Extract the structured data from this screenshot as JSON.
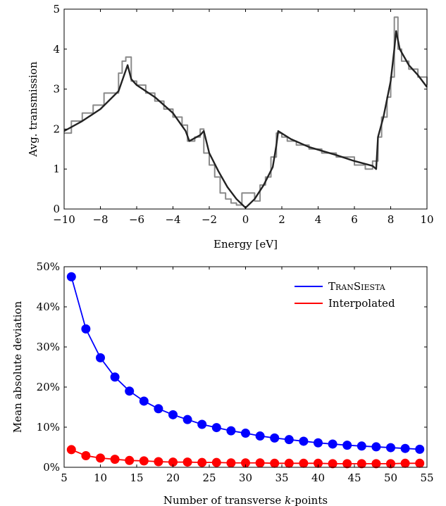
{
  "chart_data": [
    {
      "type": "line",
      "xlabel": "Energy [eV]",
      "ylabel": "Avg. transmission",
      "xlim": [
        -10,
        10
      ],
      "ylim": [
        0,
        5
      ],
      "xticks": [
        -10,
        -8,
        -6,
        -4,
        -2,
        0,
        2,
        4,
        6,
        8,
        10
      ],
      "xtick_labels": [
        "−10",
        "−8",
        "−6",
        "−4",
        "−2",
        "0",
        "2",
        "4",
        "6",
        "8",
        "10"
      ],
      "yticks": [
        0,
        1,
        2,
        3,
        4,
        5
      ],
      "ytick_labels": [
        "0",
        "1",
        "2",
        "3",
        "4",
        "5"
      ],
      "grid": false,
      "legend": "none",
      "series": [
        {
          "color": "#8a8a8a",
          "style": "step",
          "x": [
            -10,
            -9.6,
            -9.0,
            -8.4,
            -7.8,
            -7.0,
            -6.8,
            -6.6,
            -6.3,
            -6.0,
            -5.5,
            -5.0,
            -4.5,
            -4.0,
            -3.5,
            -3.2,
            -2.8,
            -2.5,
            -2.3,
            -2.0,
            -1.7,
            -1.4,
            -1.1,
            -0.8,
            -0.5,
            -0.2,
            0.2,
            0.5,
            0.8,
            1.1,
            1.4,
            1.7,
            2.0,
            2.3,
            2.8,
            3.5,
            4.2,
            5.0,
            6.0,
            6.6,
            7.0,
            7.3,
            7.5,
            7.8,
            8.0,
            8.2,
            8.4,
            8.6,
            9.0,
            9.5,
            10
          ],
          "y": [
            1.9,
            2.2,
            2.4,
            2.6,
            2.9,
            3.4,
            3.7,
            3.8,
            3.2,
            3.1,
            2.9,
            2.7,
            2.5,
            2.3,
            2.1,
            1.7,
            1.8,
            2.0,
            1.4,
            1.1,
            0.8,
            0.4,
            0.25,
            0.15,
            0.1,
            0.4,
            0.4,
            0.2,
            0.6,
            0.8,
            1.3,
            1.9,
            1.8,
            1.7,
            1.6,
            1.5,
            1.4,
            1.3,
            1.1,
            1.0,
            1.2,
            1.8,
            2.3,
            2.8,
            3.3,
            4.8,
            4.0,
            3.7,
            3.5,
            3.3,
            3.1
          ]
        },
        {
          "color": "#222222",
          "style": "line",
          "x": [
            -10,
            -9.0,
            -8.0,
            -7.0,
            -6.5,
            -6.3,
            -6.0,
            -5.0,
            -4.0,
            -3.3,
            -3.1,
            -2.5,
            -2.3,
            -2.0,
            -1.5,
            -1.0,
            -0.5,
            0.0,
            0.5,
            1.0,
            1.5,
            1.7,
            1.8,
            2.5,
            3.5,
            5.0,
            6.0,
            7.0,
            7.2,
            7.3,
            7.6,
            8.0,
            8.2,
            8.3,
            8.5,
            9.0,
            9.5,
            10.0
          ],
          "y": [
            1.95,
            2.2,
            2.5,
            2.95,
            3.6,
            3.25,
            3.1,
            2.8,
            2.4,
            1.95,
            1.7,
            1.85,
            1.95,
            1.4,
            0.95,
            0.55,
            0.25,
            0.03,
            0.25,
            0.6,
            1.05,
            1.6,
            1.95,
            1.75,
            1.55,
            1.35,
            1.2,
            1.08,
            1.0,
            1.8,
            2.3,
            3.2,
            4.0,
            4.45,
            4.0,
            3.6,
            3.35,
            3.05
          ]
        }
      ]
    },
    {
      "type": "line",
      "xlabel": "Number of transverse k-points",
      "ylabel": "Mean absolute deviation",
      "xlim": [
        5,
        55
      ],
      "ylim": [
        0,
        50
      ],
      "xticks": [
        5,
        10,
        15,
        20,
        25,
        30,
        35,
        40,
        45,
        50,
        55
      ],
      "xtick_labels": [
        "5",
        "10",
        "15",
        "20",
        "25",
        "30",
        "35",
        "40",
        "45",
        "50",
        "55"
      ],
      "yticks": [
        0,
        10,
        20,
        30,
        40,
        50
      ],
      "ytick_labels": [
        "0%",
        "10%",
        "20%",
        "30%",
        "40%",
        "50%"
      ],
      "grid": false,
      "legend": "top-right",
      "x": [
        6,
        8,
        10,
        12,
        14,
        16,
        18,
        20,
        22,
        24,
        26,
        28,
        30,
        32,
        34,
        36,
        38,
        40,
        42,
        44,
        46,
        48,
        50,
        52,
        54
      ],
      "series": [
        {
          "name": "TranSiesta",
          "color": "#0000ff",
          "values": [
            47.5,
            34.5,
            27.3,
            22.5,
            19.0,
            16.5,
            14.6,
            13.1,
            11.9,
            10.7,
            9.9,
            9.1,
            8.5,
            7.8,
            7.3,
            6.9,
            6.5,
            6.1,
            5.8,
            5.5,
            5.3,
            5.1,
            4.9,
            4.7,
            4.5
          ]
        },
        {
          "name": "Interpolated",
          "color": "#ff0000",
          "values": [
            4.4,
            2.9,
            2.3,
            2.0,
            1.7,
            1.6,
            1.4,
            1.3,
            1.3,
            1.2,
            1.2,
            1.1,
            1.1,
            1.1,
            1.0,
            1.0,
            1.0,
            1.0,
            0.9,
            0.9,
            0.9,
            0.9,
            0.9,
            1.0,
            1.0
          ]
        }
      ]
    }
  ]
}
